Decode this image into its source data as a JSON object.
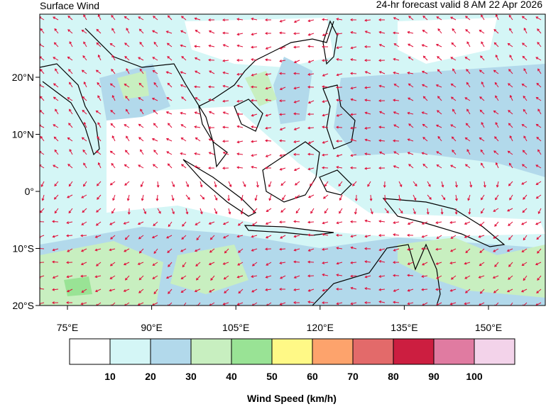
{
  "header": {
    "title": "Surface Wind",
    "subtitle": "24-hr forecast valid 8 AM 22 Apr 2026"
  },
  "map": {
    "x_ticks": [
      "75°E",
      "90°E",
      "105°E",
      "120°E",
      "135°E",
      "150°E"
    ],
    "y_ticks": [
      "20°N",
      "10°N",
      "0°",
      "10°S",
      "20°S"
    ]
  },
  "colorbar": {
    "title": "Wind Speed (km/h)",
    "colors": [
      "#ffffff",
      "#d4f6f6",
      "#b2d9eb",
      "#c8efc0",
      "#99e395",
      "#fff986",
      "#fda36c",
      "#e36a6a",
      "#cc1e40",
      "#e07ba1",
      "#f3d3ea"
    ],
    "labels": [
      "10",
      "20",
      "30",
      "40",
      "50",
      "60",
      "70",
      "80",
      "90",
      "100"
    ]
  }
}
